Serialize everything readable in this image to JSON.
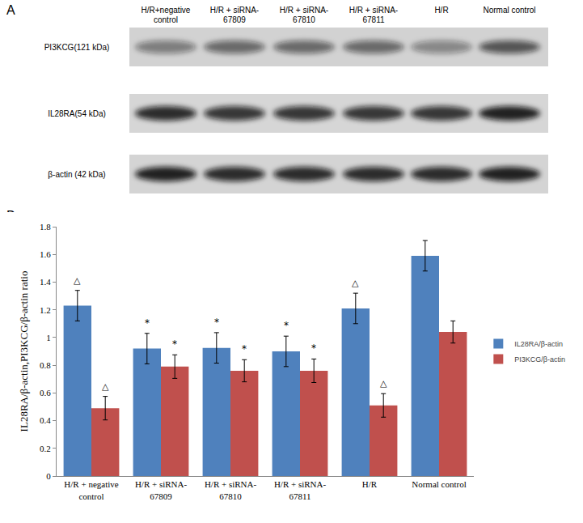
{
  "panel_a": {
    "label": "A",
    "lanes": [
      "H/R+negative control",
      "H/R + siRNA-67809",
      "H/R + siRNA-67810",
      "H/R + siRNA-67811",
      "H/R",
      "Normal control"
    ],
    "proteins": [
      "PI3KCG(121 kDa)",
      "IL28RA(54 kDa)",
      "β-actin (42 kDa)"
    ]
  },
  "panel_b": {
    "label": "B"
  },
  "chart_data": {
    "type": "bar",
    "y_label": "IL28RA/β-actin,PI3KCG/β-actin ratio",
    "categories": [
      "H/R + negative control",
      "H/R + siRNA-67809",
      "H/R + siRNA-67810",
      "H/R + siRNA-67811",
      "H/R",
      "Normal control"
    ],
    "series": [
      {
        "name": "IL28RA/β-actin",
        "color": "#4f81bd",
        "values": [
          1.23,
          0.92,
          0.925,
          0.9,
          1.21,
          1.59
        ],
        "errors": [
          0.11,
          0.11,
          0.11,
          0.11,
          0.11,
          0.11
        ],
        "significance": [
          "△",
          "*",
          "*",
          "*",
          "△",
          null
        ]
      },
      {
        "name": "PI3KCG/β-actin",
        "color": "#c0504d",
        "values": [
          0.49,
          0.79,
          0.76,
          0.76,
          0.51,
          1.04
        ],
        "errors": [
          0.085,
          0.085,
          0.08,
          0.085,
          0.085,
          0.08
        ],
        "significance": [
          "△",
          "*",
          "*",
          "*",
          "△",
          null
        ]
      }
    ],
    "ylim": [
      0,
      1.8
    ],
    "yticks": [
      0,
      0.2,
      0.4,
      0.6,
      0.8,
      1,
      1.2,
      1.4,
      1.6,
      1.8
    ],
    "grid": false,
    "legend": "right"
  }
}
